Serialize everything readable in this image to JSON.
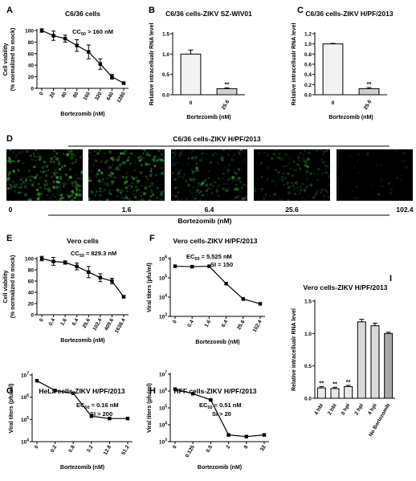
{
  "colors": {
    "fluorescence": "#1f7a2a",
    "background": "#000000",
    "bar_fill": "#d0d0d0"
  },
  "chart_data": [
    {
      "panel": "A",
      "type": "line",
      "title": "C6/36 cells",
      "annotation": "CC50 > 160 nM",
      "xlabel": "Bortezomib (nM)",
      "ylabel": "Cell viability (% normalized to mock)",
      "x_ticks": [
        "0",
        "20",
        "40",
        "80",
        "160",
        "320",
        "640",
        "1280"
      ],
      "values": [
        100,
        91,
        86,
        74,
        63,
        42,
        20,
        9
      ],
      "errors": [
        3,
        8,
        6,
        10,
        12,
        9,
        4,
        2
      ],
      "ylim": [
        0,
        100
      ],
      "y_ticks": [
        "0",
        "20",
        "40",
        "60",
        "80",
        "100"
      ]
    },
    {
      "panel": "B",
      "type": "bar",
      "title": "C6/36 cells-ZIKV SZ-WIV01",
      "xlabel": "Bortezomib (nM)",
      "ylabel": "Relative intracellualr RNA level",
      "categories": [
        "0",
        "25.6"
      ],
      "values": [
        1.0,
        0.15
      ],
      "errors": [
        0.1,
        0.02
      ],
      "sig": [
        "",
        "**"
      ],
      "ylim": [
        0,
        1.5
      ],
      "y_ticks": [
        "0.0",
        "0.5",
        "1.0",
        "1.5"
      ]
    },
    {
      "panel": "C",
      "type": "bar",
      "title": "C6/36 cells-ZIKV H/PF/2013",
      "xlabel": "Bortezomib (nM)",
      "ylabel": "Relative intracellualr RNA level",
      "categories": [
        "0",
        "25.6"
      ],
      "values": [
        1.0,
        0.12
      ],
      "errors": [
        0.01,
        0.02
      ],
      "sig": [
        "",
        "**"
      ],
      "ylim": [
        0,
        1.2
      ],
      "y_ticks": [
        "0.0",
        "0.2",
        "0.4",
        "0.6",
        "0.8",
        "1.0",
        "1.2"
      ]
    },
    {
      "panel": "E",
      "type": "line",
      "title": "Vero cells",
      "annotation": "CC50 = 829.3 nM",
      "xlabel": "Bortezomib (nM)",
      "ylabel": "Cell viability (% normalized to mock)",
      "x_ticks": [
        "0",
        "0.4",
        "1.6",
        "6.4",
        "25.6",
        "102.4",
        "409.6",
        "1638.4"
      ],
      "values": [
        100,
        95,
        93,
        86,
        76,
        66,
        60,
        32
      ],
      "errors": [
        4,
        7,
        3,
        6,
        10,
        7,
        5,
        2
      ],
      "ylim": [
        0,
        100
      ],
      "y_ticks": [
        "0",
        "20",
        "40",
        "60",
        "80",
        "100"
      ]
    },
    {
      "panel": "F",
      "type": "line",
      "log_y": true,
      "title": "Vero cells-ZIKV H/PF/2013",
      "annotation": "EC50 = 5.525 nM",
      "annotation2": "SI = 150",
      "xlabel": "Bortezomib (nM)",
      "ylabel": "Viral titers (pfu/ml)",
      "x_ticks": [
        "0",
        "0.4",
        "1.6",
        "6.4",
        "25.6",
        "102.4"
      ],
      "values": [
        400000,
        380000,
        400000,
        50000,
        8000,
        4500
      ],
      "ylim": [
        1000,
        1000000
      ],
      "y_ticks": [
        "10^3",
        "10^4",
        "10^5",
        "10^6"
      ]
    },
    {
      "panel": "I",
      "type": "bar",
      "title": "Vero cells-ZIKV H/PF/2013",
      "xlabel": "",
      "ylabel": "Relative intracellualr RNA level",
      "categories": [
        "4 hbi",
        "2 hbi",
        "0 hpi",
        "2 hpi",
        "4 hpi",
        "No Bortezomib"
      ],
      "values": [
        0.16,
        0.15,
        0.18,
        1.18,
        1.12,
        1.0
      ],
      "errors": [
        0.02,
        0.02,
        0.02,
        0.04,
        0.04,
        0.02
      ],
      "sig": [
        "**",
        "**",
        "**",
        "",
        "",
        ""
      ],
      "ylim": [
        0,
        1.5
      ],
      "y_ticks": [
        "0.0",
        "0.5",
        "1.0",
        "1.5"
      ]
    },
    {
      "panel": "G",
      "type": "line",
      "log_y": true,
      "title": "HeLa cells-ZIKV H/PF/2013",
      "annotation": "EC50 = 0.16 nM",
      "annotation2": "SI > 200",
      "xlabel": "Bortezomib (nM)",
      "ylabel": "Viral titers (pfu/ml)",
      "x_ticks": [
        "0",
        "0.2",
        "0.8",
        "3.2",
        "12.8",
        "51.2"
      ],
      "values": [
        5500000,
        2000000,
        1500000,
        140000,
        110000,
        110000
      ],
      "ylim": [
        10000,
        10000000
      ],
      "y_ticks": [
        "10^4",
        "10^5",
        "10^6",
        "10^7"
      ]
    },
    {
      "panel": "H",
      "type": "line",
      "log_y": true,
      "title": "HFF cells-ZIKV H/PF/2013",
      "annotation": "EC50 = 0.51 nM",
      "annotation2": "SI > 20",
      "xlabel": "Bortezomib (nM)",
      "ylabel": "Viral titers (pfu/ml)",
      "x_ticks": [
        "0",
        "0.125",
        "0.5",
        "2",
        "8",
        "32"
      ],
      "values": [
        1300000,
        700000,
        300000,
        2500,
        2000,
        2500
      ],
      "ylim": [
        1000,
        10000000
      ],
      "y_ticks": [
        "10^3",
        "10^4",
        "10^5",
        "10^6",
        "10^7"
      ]
    }
  ],
  "panel_d": {
    "label": "D",
    "title": "C6/36 cells-ZIKV H/PF/2013",
    "doses": [
      "0",
      "1.6",
      "6.4",
      "25.6",
      "102.4"
    ],
    "intensity": [
      0.9,
      0.85,
      0.65,
      0.55,
      0.12
    ],
    "xlabel": "Bortezomib (nM)"
  }
}
